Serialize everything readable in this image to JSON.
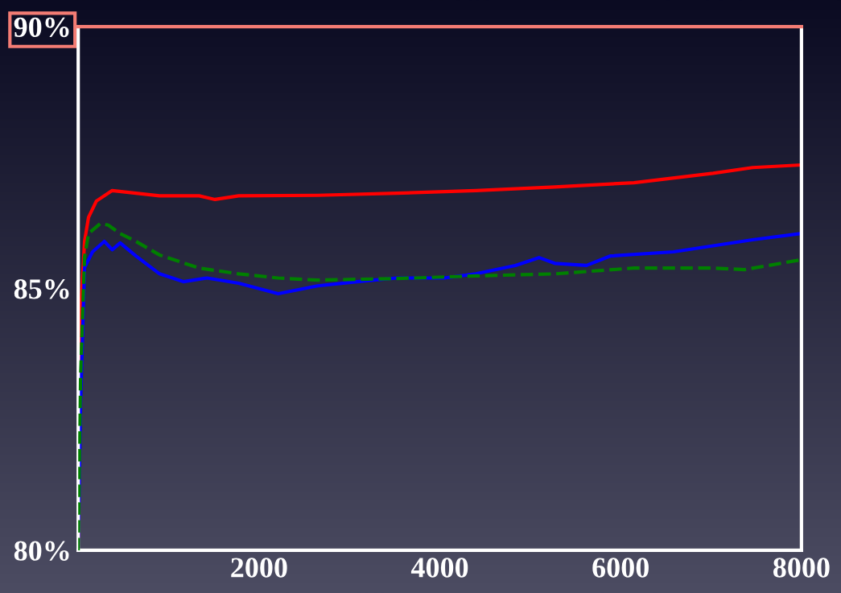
{
  "chart_data": {
    "type": "line",
    "xlim": [
      0,
      8000
    ],
    "ylim": [
      80,
      90
    ],
    "xticks": [
      2000,
      4000,
      6000,
      8000
    ],
    "yticks": [
      {
        "value": 80,
        "label": "80%"
      },
      {
        "value": 85,
        "label": "85%"
      },
      {
        "value": 90,
        "label": "90%"
      }
    ],
    "grid": false,
    "legend": false,
    "series": [
      {
        "color": "#ff0000",
        "line_style": "solid",
        "x": [
          0,
          26,
          70,
          114,
          201,
          376,
          900,
          1338,
          1513,
          1775,
          2649,
          3523,
          4398,
          5272,
          6147,
          7021,
          7459,
          8000
        ],
        "values": [
          80,
          84.52,
          85.9,
          86.36,
          86.67,
          86.87,
          86.77,
          86.77,
          86.7,
          86.77,
          86.78,
          86.82,
          86.87,
          86.94,
          87.02,
          87.2,
          87.31,
          87.36
        ]
      },
      {
        "color": "#008000",
        "line_style": "dashed",
        "x": [
          0,
          26,
          70,
          114,
          245,
          332,
          464,
          638,
          900,
          1338,
          1775,
          2212,
          2649,
          3523,
          4398,
          5272,
          6147,
          7021,
          7371,
          8000
        ],
        "values": [
          80,
          83.3,
          85.6,
          86.05,
          86.24,
          86.21,
          86.05,
          85.9,
          85.64,
          85.39,
          85.28,
          85.2,
          85.16,
          85.19,
          85.24,
          85.28,
          85.39,
          85.39,
          85.36,
          85.55
        ]
      },
      {
        "color": "#0000ff",
        "line_style": "solid",
        "x": [
          0,
          26,
          70,
          158,
          289,
          376,
          464,
          638,
          900,
          1163,
          1425,
          1775,
          2212,
          2649,
          3086,
          3523,
          4048,
          4398,
          4835,
          5097,
          5272,
          5622,
          5884,
          6584,
          7459,
          8000
        ],
        "values": [
          80,
          82.8,
          85.4,
          85.7,
          85.9,
          85.74,
          85.87,
          85.62,
          85.28,
          85.13,
          85.2,
          85.1,
          84.9,
          85.05,
          85.13,
          85.2,
          85.2,
          85.28,
          85.44,
          85.59,
          85.48,
          85.44,
          85.62,
          85.7,
          85.93,
          86.05
        ]
      }
    ]
  }
}
